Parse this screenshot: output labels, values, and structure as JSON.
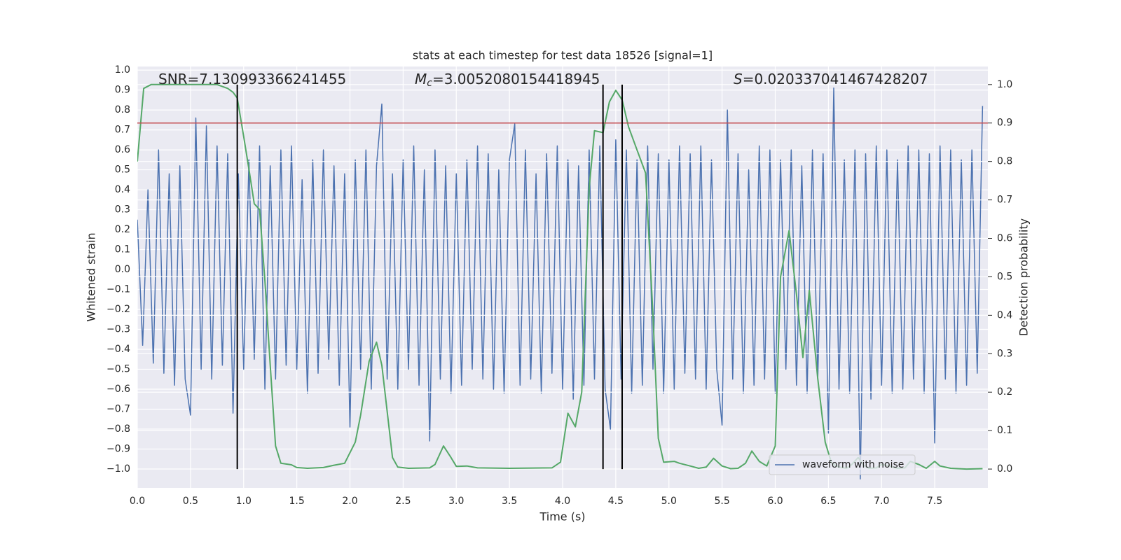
{
  "chart_data": {
    "type": "line",
    "title": "stats at each timestep for test data 18526 [signal=1]",
    "xlabel": "Time (s)",
    "ylabel": "Whitened strain",
    "y2label": "Detection probability",
    "background": "#eaeaf2",
    "grid": true,
    "legend": "lower right",
    "xlim": [
      0,
      8
    ],
    "ylim": [
      -1.095,
      1.018
    ],
    "y2lim": [
      -0.049,
      1.047
    ],
    "xticks": [
      {
        "value": 0,
        "label": "0.0"
      },
      0.5,
      {
        "value": 1,
        "label": "1.0"
      },
      1.5,
      {
        "value": 2,
        "label": "2.0"
      },
      2.5,
      {
        "value": 3,
        "label": "3.0"
      },
      3.5,
      {
        "value": 4,
        "label": "4.0"
      },
      4.5,
      {
        "value": 5,
        "label": "5.0"
      },
      5.5,
      {
        "value": 6,
        "label": "6.0"
      },
      6.5,
      {
        "value": 7,
        "label": "7.0"
      },
      7.5
    ],
    "yticks": [
      {
        "value": -1,
        "label": "−1.0"
      },
      {
        "value": -0.9,
        "label": "−0.9"
      },
      {
        "value": -0.8,
        "label": "−0.8"
      },
      {
        "value": -0.7,
        "label": "−0.7"
      },
      {
        "value": -0.6,
        "label": "−0.6"
      },
      {
        "value": -0.5,
        "label": "−0.5"
      },
      {
        "value": -0.4,
        "label": "−0.4"
      },
      {
        "value": -0.3,
        "label": "−0.3"
      },
      {
        "value": -0.2,
        "label": "−0.2"
      },
      {
        "value": -0.1,
        "label": "−0.1"
      },
      {
        "value": 0,
        "label": "0.0"
      },
      0.1,
      0.2,
      0.3,
      0.4,
      0.5,
      0.6,
      0.7,
      0.8,
      0.9,
      {
        "value": 1,
        "label": "1.0"
      }
    ],
    "y2ticks": [
      {
        "value": 0,
        "label": "0.0"
      },
      0.1,
      0.2,
      0.3,
      0.4,
      0.5,
      0.6,
      0.7,
      0.8,
      0.9,
      {
        "value": 1,
        "label": "1.0"
      }
    ],
    "annotations": [
      {
        "text": "SNR=7.130993366241455"
      },
      {
        "symbol": "M",
        "subscript": "c",
        "text": "=3.0052080154418945"
      },
      {
        "symbol": "S",
        "text": "=0.020337041467428207"
      }
    ],
    "hline": {
      "value": 0.9,
      "axis": "y2",
      "color": "#c44e52"
    },
    "vlines": {
      "x": [
        0.94,
        4.38,
        4.56
      ],
      "span": [
        0,
        1
      ],
      "axis": "y2",
      "color": "#000000"
    },
    "series": [
      {
        "name": "waveform with noise",
        "color": "#4c72b0",
        "axis": "y",
        "x": [
          0,
          0.05,
          0.1,
          0.15,
          0.2,
          0.25,
          0.3,
          0.35,
          0.4,
          0.45,
          0.5,
          0.55,
          0.6,
          0.65,
          0.7,
          0.75,
          0.8,
          0.85,
          0.9,
          0.95,
          1,
          1.05,
          1.1,
          1.15,
          1.2,
          1.25,
          1.3,
          1.35,
          1.4,
          1.45,
          1.5,
          1.55,
          1.6,
          1.65,
          1.7,
          1.75,
          1.8,
          1.85,
          1.9,
          1.95,
          2,
          2.05,
          2.1,
          2.15,
          2.2,
          2.25,
          2.3,
          2.35,
          2.4,
          2.45,
          2.5,
          2.55,
          2.6,
          2.65,
          2.7,
          2.75,
          2.8,
          2.85,
          2.9,
          2.95,
          3,
          3.05,
          3.1,
          3.15,
          3.2,
          3.25,
          3.3,
          3.35,
          3.4,
          3.45,
          3.5,
          3.55,
          3.6,
          3.65,
          3.7,
          3.75,
          3.8,
          3.85,
          3.9,
          3.95,
          4,
          4.05,
          4.1,
          4.15,
          4.2,
          4.25,
          4.3,
          4.35,
          4.4,
          4.45,
          4.5,
          4.55,
          4.6,
          4.65,
          4.7,
          4.75,
          4.8,
          4.85,
          4.9,
          4.95,
          5,
          5.05,
          5.1,
          5.15,
          5.2,
          5.25,
          5.3,
          5.35,
          5.4,
          5.45,
          5.5,
          5.55,
          5.6,
          5.65,
          5.7,
          5.75,
          5.8,
          5.85,
          5.9,
          5.95,
          6,
          6.05,
          6.1,
          6.15,
          6.2,
          6.25,
          6.3,
          6.35,
          6.4,
          6.45,
          6.5,
          6.55,
          6.6,
          6.65,
          6.7,
          6.75,
          6.8,
          6.85,
          6.9,
          6.95,
          7,
          7.05,
          7.1,
          7.15,
          7.2,
          7.25,
          7.3,
          7.35,
          7.4,
          7.45,
          7.5,
          7.55,
          7.6,
          7.65,
          7.7,
          7.75,
          7.8,
          7.85,
          7.9,
          7.95
        ],
        "values": [
          0.25,
          -0.38,
          0.4,
          -0.47,
          0.6,
          -0.52,
          0.48,
          -0.58,
          0.52,
          -0.55,
          -0.73,
          0.76,
          -0.5,
          0.72,
          -0.55,
          0.62,
          -0.48,
          0.58,
          -0.72,
          0.48,
          -0.5,
          0.55,
          -0.45,
          0.62,
          -0.6,
          0.52,
          -0.55,
          0.6,
          -0.48,
          0.62,
          -0.5,
          0.45,
          -0.62,
          0.55,
          -0.52,
          0.6,
          -0.45,
          0.52,
          -0.58,
          0.48,
          -0.79,
          0.55,
          -0.5,
          0.6,
          -0.6,
          0.52,
          0.83,
          -0.55,
          0.48,
          -0.6,
          0.55,
          -0.5,
          0.62,
          -0.58,
          0.5,
          -0.86,
          0.6,
          -0.55,
          0.52,
          -0.62,
          0.48,
          -0.58,
          0.55,
          -0.5,
          0.62,
          -0.55,
          0.58,
          -0.6,
          0.5,
          -0.62,
          0.55,
          0.73,
          -0.58,
          0.6,
          -0.55,
          0.48,
          -0.62,
          0.58,
          -0.52,
          0.62,
          -0.6,
          0.55,
          -0.65,
          0.52,
          -0.58,
          0.6,
          -0.55,
          0.62,
          -0.6,
          -0.8,
          0.65,
          -0.55,
          0.6,
          -0.62,
          0.55,
          -0.58,
          0.62,
          -0.5,
          0.58,
          -0.62,
          0.55,
          -0.6,
          0.62,
          -0.52,
          0.58,
          -0.55,
          0.62,
          -0.6,
          0.55,
          -0.5,
          -0.78,
          0.8,
          -0.55,
          0.58,
          -0.62,
          0.5,
          -0.58,
          0.62,
          -0.55,
          0.6,
          -0.62,
          0.55,
          -0.5,
          0.6,
          -0.58,
          0.52,
          -0.62,
          0.6,
          -0.55,
          0.58,
          -0.82,
          0.91,
          -0.6,
          0.55,
          -0.62,
          0.6,
          -1.05,
          0.58,
          -0.65,
          0.62,
          -0.58,
          0.6,
          -0.62,
          0.55,
          -0.6,
          0.62,
          -0.55,
          0.6,
          -0.62,
          0.58,
          -0.87,
          0.62,
          -0.55,
          0.6,
          -0.62,
          0.55,
          -0.58,
          0.6,
          -0.52,
          0.82
        ]
      },
      {
        "color": "#55a868",
        "axis": "y2",
        "x": [
          0,
          0.06,
          0.13,
          0.75,
          0.85,
          0.9,
          0.94,
          1,
          1.05,
          1.1,
          1.15,
          1.2,
          1.25,
          1.3,
          1.35,
          1.45,
          1.5,
          1.6,
          1.75,
          1.85,
          1.95,
          2.05,
          2.1,
          2.18,
          2.25,
          2.3,
          2.4,
          2.45,
          2.55,
          2.75,
          2.8,
          2.88,
          2.95,
          3,
          3.1,
          3.2,
          3.5,
          3.9,
          3.98,
          4.05,
          4.12,
          4.18,
          4.25,
          4.3,
          4.38,
          4.44,
          4.5,
          4.56,
          4.62,
          4.7,
          4.78,
          4.85,
          4.9,
          4.95,
          5.05,
          5.1,
          5.2,
          5.28,
          5.35,
          5.42,
          5.5,
          5.58,
          5.65,
          5.72,
          5.78,
          5.85,
          5.92,
          6,
          6.05,
          6.13,
          6.2,
          6.26,
          6.32,
          6.4,
          6.47,
          6.53,
          6.6,
          6.67,
          6.72,
          6.78,
          6.83,
          6.88,
          6.95,
          7,
          7.07,
          7.15,
          7.22,
          7.27,
          7.35,
          7.42,
          7.5,
          7.55,
          7.65,
          7.8,
          7.95
        ],
        "values": [
          0.8,
          0.99,
          1.0,
          1.0,
          0.99,
          0.98,
          0.965,
          0.865,
          0.78,
          0.69,
          0.675,
          0.49,
          0.27,
          0.06,
          0.015,
          0.011,
          0.004,
          0.002,
          0.004,
          0.01,
          0.015,
          0.07,
          0.14,
          0.28,
          0.33,
          0.27,
          0.03,
          0.005,
          0.002,
          0.003,
          0.012,
          0.06,
          0.03,
          0.007,
          0.008,
          0.003,
          0.002,
          0.003,
          0.018,
          0.145,
          0.11,
          0.2,
          0.73,
          0.88,
          0.875,
          0.955,
          0.985,
          0.96,
          0.89,
          0.83,
          0.77,
          0.4,
          0.08,
          0.018,
          0.02,
          0.015,
          0.008,
          0.002,
          0.005,
          0.028,
          0.008,
          0.001,
          0.002,
          0.015,
          0.047,
          0.02,
          0.008,
          0.06,
          0.5,
          0.62,
          0.455,
          0.29,
          0.465,
          0.235,
          0.07,
          0.015,
          0.005,
          0.002,
          0.012,
          0.03,
          0.01,
          0.002,
          0.003,
          0.012,
          0.008,
          0.002,
          0.003,
          0.02,
          0.012,
          0.002,
          0.02,
          0.008,
          0.002,
          0.0,
          0.001
        ]
      }
    ]
  }
}
